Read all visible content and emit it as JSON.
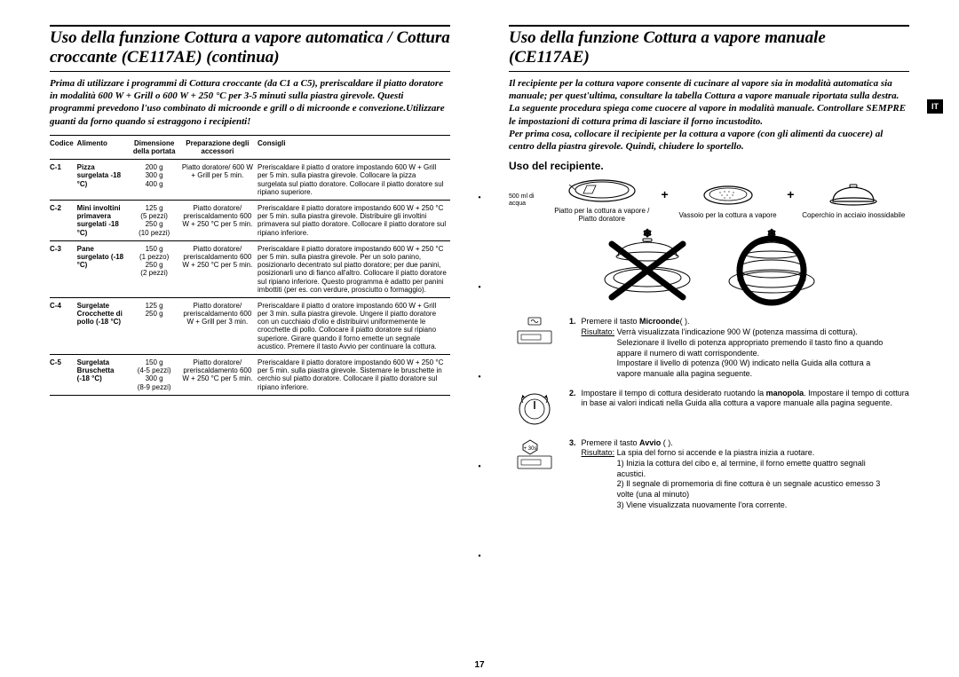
{
  "page_number": "17",
  "lang_tab": "IT",
  "left": {
    "title": "Uso della funzione Cottura a vapore automatica / Cottura croccante (CE117AE) (continua)",
    "intro": "Prima di utilizzare i programmi di Cottura croccante (da C1 a C5), preriscaldare il piatto doratore in modalità 600 W + Grill o 600 W + 250 °C per 3-5 minuti sulla piastra girevole. Questi programmi prevedono l'uso combinato di microonde e grill o di microonde e convezione.Utilizzare guanti da forno quando si estraggono i recipienti!",
    "headers": {
      "code": "Codice",
      "food": "Alimento",
      "dim": "Dimensione della portata",
      "prep": "Preparazione degli accessori",
      "tips": "Consigli"
    },
    "rows": [
      {
        "code": "C-1",
        "food": "Pizza surgelata -18 °C)",
        "dim": "200 g\n300 g\n400 g",
        "prep": "Piatto doratore/ 600 W + Grill per 5 min.",
        "tips": "Preriscaldare il piatto d oratore impostando 600 W + Grill per 5 min. sulla piastra girevole. Collocare la pizza surgelata sul piatto doratore. Collocare il piatto doratore sul ripiano superiore."
      },
      {
        "code": "C-2",
        "food": "Mini involtini primavera surgelati -18 °C)",
        "dim": "125 g\n(5 pezzi)\n250 g\n(10 pezzi)",
        "prep": "Piatto doratore/ preriscaldamento 600 W + 250 °C per 5 min.",
        "tips": "Preriscaldare il piatto doratore impostando 600 W + 250 °C per 5 min. sulla piastra girevole. Distribuire gli involtini primavera sul piatto doratore. Collocare il piatto doratore sul ripiano inferiore."
      },
      {
        "code": "C-3",
        "food": "Pane surgelato (-18 °C)",
        "dim": "150 g\n(1 pezzo)\n250 g\n(2 pezzi)",
        "prep": "Piatto doratore/ preriscaldamento 600 W + 250 °C per 5 min.",
        "tips": "Preriscaldare il piatto doratore impostando 600 W + 250 °C per 5 min. sulla piastra girevole. Per un solo panino, posizionarlo decentrato sul piatto doratore; per due panini, posizionarli uno di fianco all'altro. Collocare il piatto doratore sul ripiano inferiore. Questo programma è adatto per panini imbottiti (per es. con verdure, prosciutto o formaggio)."
      },
      {
        "code": "C-4",
        "food": "Surgelate Crocchette di pollo (-18 °C)",
        "dim": "125 g\n250 g",
        "prep": "Piatto doratore/ preriscaldamento 600 W + Grill per 3 min.",
        "tips": "Preriscaldare il piatto d oratore impostando 600 W + Grill per 3 min. sulla piastra girevole. Ungere il piatto doratore con un cucchiaio d'olio e distribuirvi uniformemente le crocchette di pollo. Collocare il piatto doratore sul ripiano superiore. Girare quando il forno emette un segnale acustico. Premere il tasto Avvio per continuare la cottura."
      },
      {
        "code": "C-5",
        "food": "Surgelata Bruschetta (-18 °C)",
        "dim": "150 g\n(4-5 pezzi)\n300 g\n(8-9 pezzi)",
        "prep": "Piatto doratore/ preriscaldamento 600 W + 250 °C per 5 min.",
        "tips": "Preriscaldare il piatto doratore impostando 600 W + 250 °C per 5 min. sulla piastra girevole. Sistemare le bruschette in cerchio sul piatto doratore. Collocare il piatto doratore sul ripiano inferiore."
      }
    ]
  },
  "right": {
    "title": "Uso della funzione Cottura a vapore manuale (CE117AE)",
    "intro": "Il recipiente per la cottura vapore consente di cucinare al vapore sia in modalità automatica sia manuale; per quest'ultima, consultare la tabella Cottura a vapore manuale riportata sulla destra.\nLa seguente procedura spiega come cuocere al vapore in modalità manuale. Controllare SEMPRE le impostazioni di cottura prima di lasciare il forno incustodito.\nPer prima cosa, collocare il recipiente per la cottura a vapore (con gli alimenti da cuocere) al centro della piastra girevole. Quindi, chiudere lo sportello.",
    "uso_heading": "Uso del recipiente.",
    "water_label": "500 ml di acqua",
    "recip": {
      "plate": "Piatto per la cottura a vapore / Piatto doratore",
      "tray": "Vassoio per la cottura a vapore",
      "lid": "Coperchio in acciaio inossidabile"
    },
    "steps": [
      {
        "num": "1.",
        "body": "Premere il tasto Microonde( ).",
        "ris_label": "Risultato:",
        "ris": "Verrà visualizzata l'indicazione 900 W (potenza massima di cottura).\nSelezionare il livello di potenza appropriato premendo il tasto  fino a quando appare il numero di watt corrispondente.\nImpostare il livello di potenza (900 W) indicato nella Guida alla cottura a vapore manuale alla pagina seguente."
      },
      {
        "num": "2.",
        "body": "Impostare il tempo di cottura desiderato ruotando la manopola. Impostare il tempo di cottura in base ai valori indicati nella Guida alla cottura a vapore manuale alla pagina seguente.",
        "ris_label": "",
        "ris": ""
      },
      {
        "num": "3.",
        "body": "Premere il tasto Avvio ( ).",
        "ris_label": "Risultato:",
        "ris": "La spia del forno si accende e la piastra inizia a ruotare.\n1) Inizia la cottura del cibo e, al termine, il forno emette quattro segnali acustici.\n2) Il segnale di promemoria di fine cottura è un segnale acustico emesso 3 volte (una al minuto)\n3) Viene visualizzata nuovamente l'ora corrente."
      }
    ],
    "plus30": "+ 30s"
  },
  "colors": {
    "text": "#000000",
    "bg": "#ffffff",
    "line_gray": "#666666",
    "hatch": "#444444"
  }
}
